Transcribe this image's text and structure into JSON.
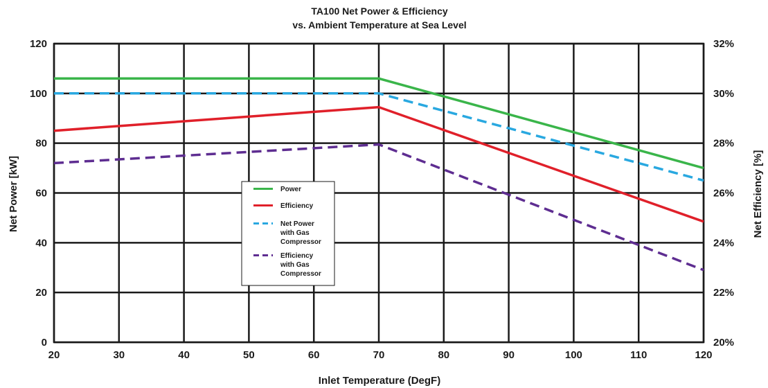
{
  "chart_data": {
    "type": "line",
    "title": "TA100 Net Power & Efficiency",
    "subtitle": "vs. Ambient Temperature at Sea Level",
    "xlabel": "Inlet Temperature (DegF)",
    "ylabel": "Net Power [kW]",
    "y2label": "Net Efficiency [%]",
    "xlim": [
      20,
      120
    ],
    "ylim": [
      0,
      120
    ],
    "y2lim": [
      20,
      32
    ],
    "grid": true,
    "legend_position": "center",
    "x_ticks": [
      "20",
      "30",
      "40",
      "50",
      "60",
      "70",
      "80",
      "90",
      "100",
      "110",
      "120"
    ],
    "y_ticks": [
      "0",
      "20",
      "40",
      "60",
      "80",
      "100",
      "120"
    ],
    "y2_ticks": [
      "20%",
      "22%",
      "24%",
      "26%",
      "28%",
      "30%",
      "32%"
    ],
    "series": [
      {
        "name": "Power",
        "axis": "left",
        "style": "solid",
        "color": "#3ab54a",
        "x": [
          20,
          70,
          120
        ],
        "values": [
          106,
          106,
          70
        ]
      },
      {
        "name": "Efficiency",
        "axis": "right",
        "style": "solid",
        "color": "#e0202a",
        "x": [
          20,
          70,
          120
        ],
        "values": [
          28.5,
          29.45,
          24.85
        ]
      },
      {
        "name": "Net Power with Gas Compressor",
        "axis": "left",
        "style": "dashed",
        "color": "#29a8e0",
        "x": [
          20,
          70,
          120
        ],
        "values": [
          100,
          100,
          65
        ]
      },
      {
        "name": "Efficiency with Gas Compressor",
        "axis": "right",
        "style": "dashed",
        "color": "#5e2d91",
        "x": [
          20,
          70,
          120
        ],
        "values": [
          27.2,
          27.95,
          22.9
        ]
      }
    ],
    "legend": [
      {
        "lines": [
          "Power"
        ]
      },
      {
        "lines": [
          "Efficiency"
        ]
      },
      {
        "lines": [
          "Net Power",
          "with Gas",
          "Compressor"
        ]
      },
      {
        "lines": [
          "Efficiency",
          "with Gas",
          "Compressor"
        ]
      }
    ]
  }
}
